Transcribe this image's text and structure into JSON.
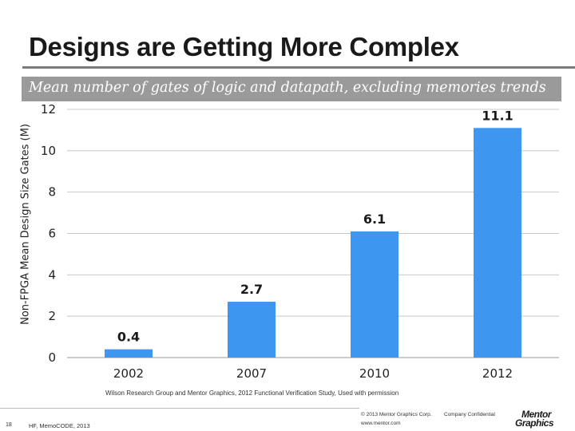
{
  "slide": {
    "title": "Designs are Getting More Complex",
    "subtitle": "Mean number of gates of logic and datapath, excluding memories trends"
  },
  "chart_data": {
    "type": "bar",
    "title": "Mean number of gates of logic and datapath, excluding memories trends",
    "xlabel": "",
    "ylabel": "Non-FPGA Mean Design Size Gates (M)",
    "categories": [
      "2002",
      "2007",
      "2010",
      "2012"
    ],
    "values": [
      0.4,
      2.7,
      6.1,
      11.1
    ],
    "data_labels": [
      "0.4",
      "2.7",
      "6.1",
      "11.1"
    ],
    "ylim": [
      0,
      12
    ],
    "yticks": [
      0,
      2,
      4,
      6,
      8,
      10,
      12
    ],
    "grid": true,
    "bar_color": "#3d97f0",
    "grid_color": "#c8c8c8"
  },
  "footer": {
    "source": "Wilson Research Group and Mentor Graphics, 2012 Functional Verification Study, Used with permission",
    "page_number": "18",
    "event": "HF, MemoCODE, 2013",
    "copyright": "© 2013 Mentor Graphics Corp.",
    "website": "www.mentor.com",
    "confidential": "Company Confidential",
    "logo_line_1": "Mentor",
    "logo_line_2": "Graphics"
  }
}
